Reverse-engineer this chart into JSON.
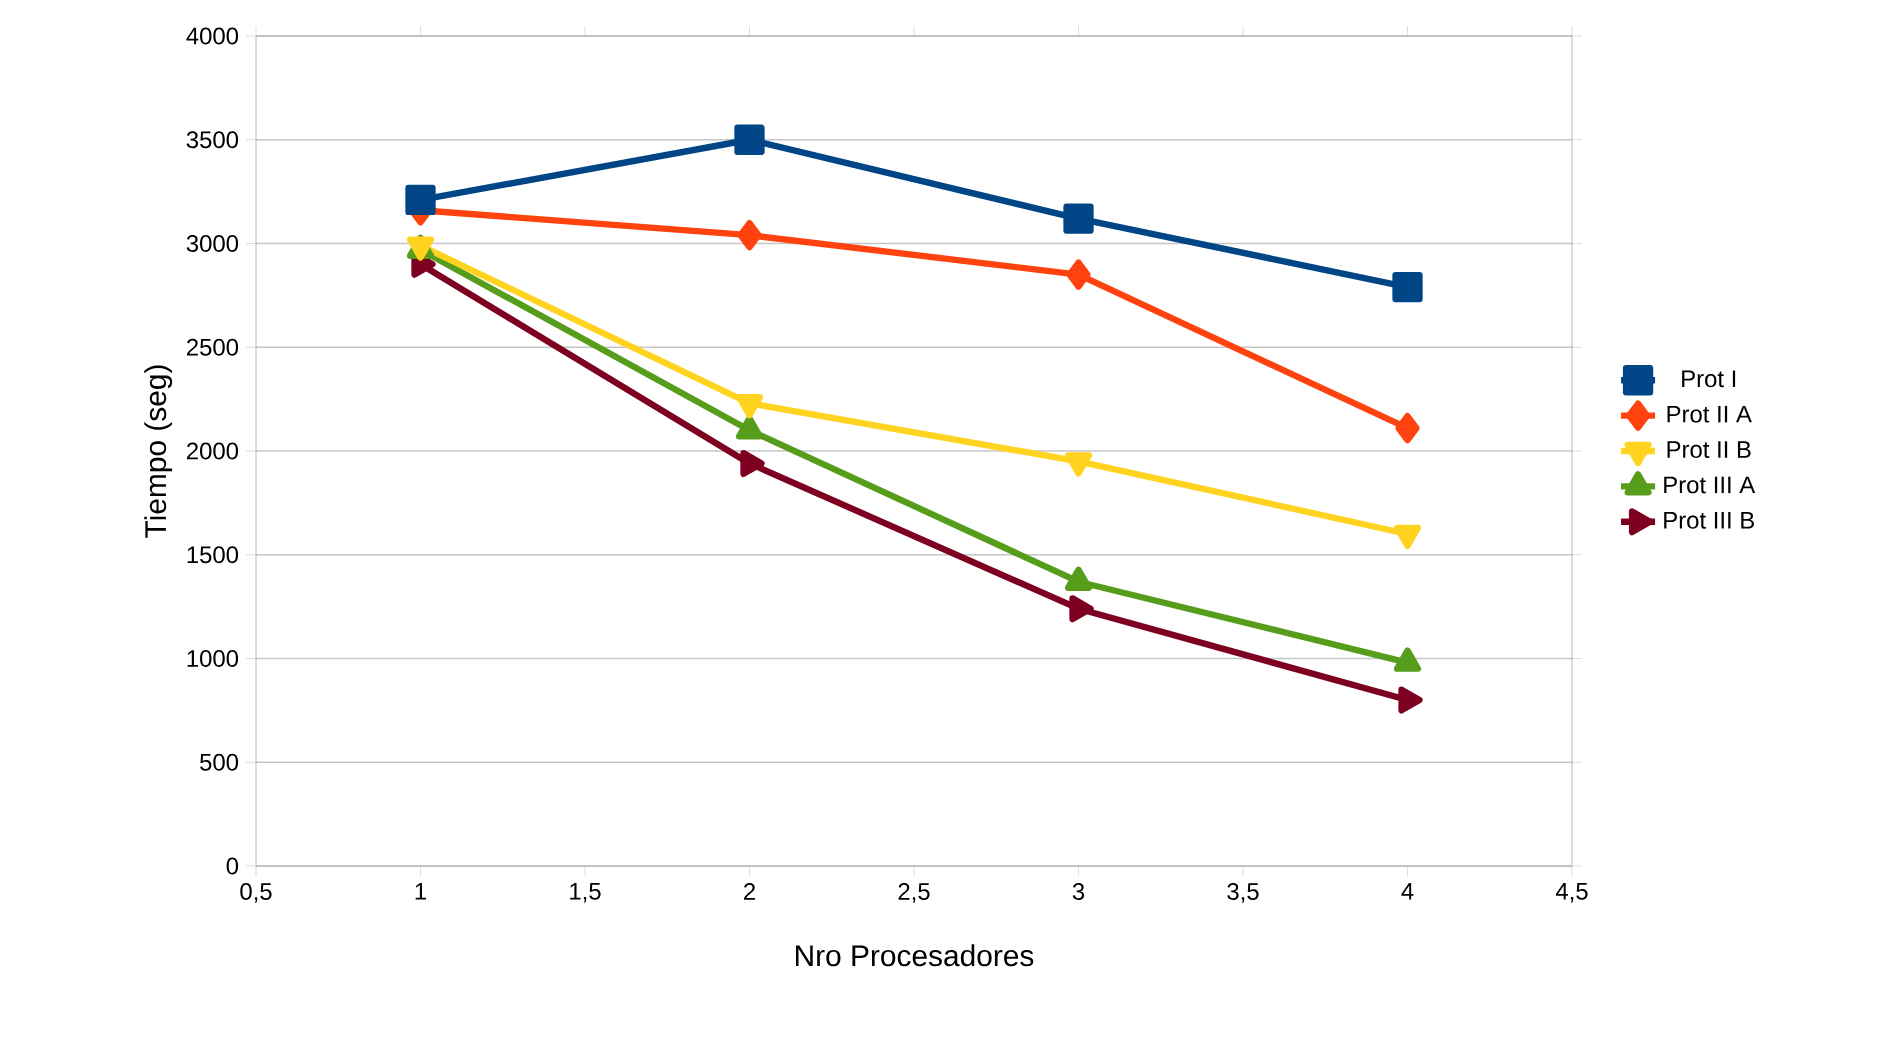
{
  "chart_data": {
    "type": "line",
    "xlabel": "Nro Procesadores",
    "ylabel": "Tiempo (seg)",
    "x": [
      1,
      2,
      3,
      4
    ],
    "series": [
      {
        "name": "Prot I",
        "color": "#004586",
        "marker": "square",
        "values": [
          3210,
          3500,
          3120,
          2790
        ]
      },
      {
        "name": "Prot II A",
        "color": "#ff420e",
        "marker": "diamond",
        "values": [
          3160,
          3040,
          2850,
          2110
        ]
      },
      {
        "name": "Prot II B",
        "color": "#ffd320",
        "marker": "triangle down",
        "values": [
          2990,
          2230,
          1950,
          1600
        ]
      },
      {
        "name": "Prot III A",
        "color": "#579d1c",
        "marker": "triangle",
        "values": [
          2970,
          2100,
          1370,
          980
        ]
      },
      {
        "name": "Prot III B",
        "color": "#7e0021",
        "marker": "triangle right",
        "values": [
          2900,
          1940,
          1240,
          800
        ]
      }
    ],
    "xlim": [
      0.5,
      4.5
    ],
    "xticks": [
      {
        "value": 0.5,
        "label": "0,5"
      },
      1,
      {
        "value": 1.5,
        "label": "1,5"
      },
      2,
      {
        "value": 2.5,
        "label": "2,5"
      },
      3,
      {
        "value": 3.5,
        "label": "3,5"
      },
      4,
      {
        "value": 4.5,
        "label": "4,5"
      }
    ],
    "ylim": [
      0,
      4000
    ],
    "yticks": [
      0,
      500,
      1000,
      1500,
      2000,
      2500,
      3000,
      3500,
      4000
    ],
    "grid": "y",
    "legend": "right",
    "line_style": "solid"
  }
}
